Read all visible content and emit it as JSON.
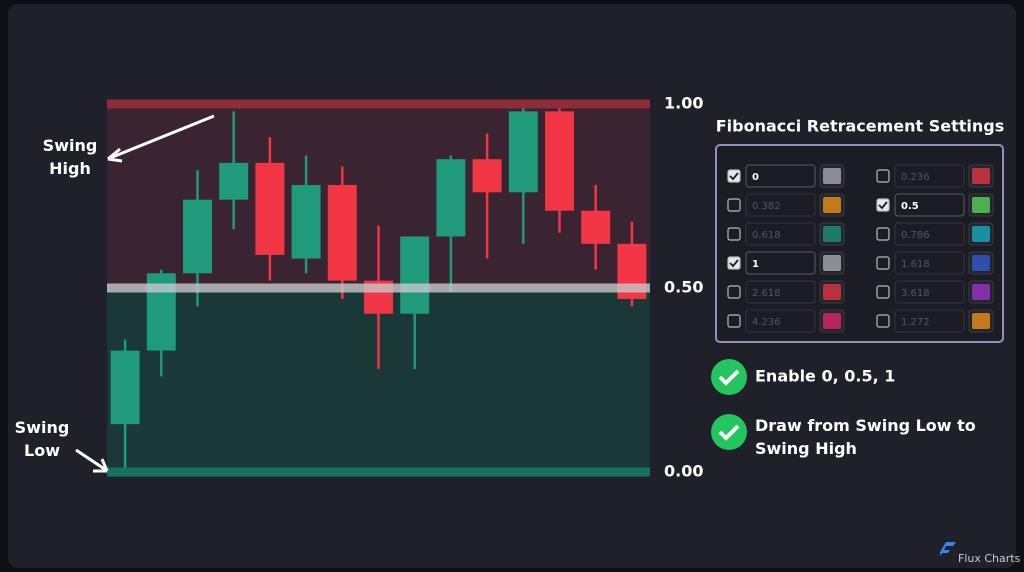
{
  "chart_data": {
    "type": "candlestick",
    "open": [
      0.13,
      0.33,
      0.54,
      0.74,
      0.84,
      0.58,
      0.78,
      0.52,
      0.43,
      0.64,
      0.85,
      0.76,
      0.98,
      0.71,
      0.62
    ],
    "high": [
      0.36,
      0.55,
      0.82,
      0.98,
      0.91,
      0.86,
      0.83,
      0.67,
      0.64,
      0.86,
      0.92,
      0.99,
      1.0,
      0.78,
      0.68
    ],
    "low": [
      0.0,
      0.26,
      0.45,
      0.66,
      0.52,
      0.54,
      0.47,
      0.28,
      0.28,
      0.49,
      0.58,
      0.62,
      0.65,
      0.55,
      0.45
    ],
    "close": [
      0.33,
      0.54,
      0.74,
      0.84,
      0.59,
      0.78,
      0.52,
      0.43,
      0.64,
      0.85,
      0.76,
      0.98,
      0.71,
      0.62,
      0.47
    ],
    "up_color": "#1f9a7a",
    "down_color": "#f23645",
    "ylim": [
      0,
      1
    ],
    "yticks": [
      {
        "value": 0,
        "label": "0.00"
      },
      {
        "value": 0.5,
        "label": "0.50"
      },
      {
        "value": 1,
        "label": "1.00"
      }
    ],
    "level_colors": [
      "#15725e",
      "#c9c9cc",
      "#8e2d38"
    ],
    "zone_colors": [
      "#1a3836",
      "#3a2431"
    ],
    "annotations": [
      "Swing High",
      "Swing Low"
    ]
  },
  "settings": {
    "title": "Fibonacci Retracement Settings",
    "columns": [
      [
        {
          "value": "0",
          "checked": true,
          "color": "#8d8e93"
        },
        {
          "value": "0.382",
          "checked": false,
          "color": "#c27b1c"
        },
        {
          "value": "0.618",
          "checked": false,
          "color": "#1c7c67"
        },
        {
          "value": "1",
          "checked": true,
          "color": "#8d8e93"
        },
        {
          "value": "2.618",
          "checked": false,
          "color": "#b8323f"
        },
        {
          "value": "4.236",
          "checked": false,
          "color": "#b5265a"
        }
      ],
      [
        {
          "value": "0.236",
          "checked": false,
          "color": "#b8323f"
        },
        {
          "value": "0.5",
          "checked": true,
          "color": "#4caf50"
        },
        {
          "value": "0.786",
          "checked": false,
          "color": "#1a8fa0"
        },
        {
          "value": "1.618",
          "checked": false,
          "color": "#2f4fb0"
        },
        {
          "value": "3.618",
          "checked": false,
          "color": "#8430a8"
        },
        {
          "value": "1.272",
          "checked": false,
          "color": "#c27b1c"
        }
      ]
    ]
  },
  "checklist": [
    "Enable 0, 0.5, 1",
    "Draw from Swing Low to Swing High"
  ],
  "logo": "Flux Charts"
}
